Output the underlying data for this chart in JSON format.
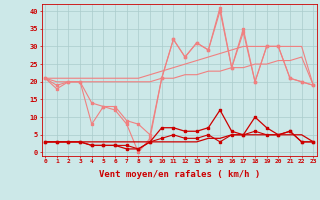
{
  "x": [
    0,
    1,
    2,
    3,
    4,
    5,
    6,
    7,
    8,
    9,
    10,
    11,
    12,
    13,
    14,
    15,
    16,
    17,
    18,
    19,
    20,
    21,
    22,
    23
  ],
  "rafales_line1": [
    21,
    19,
    20,
    20,
    8,
    13,
    12,
    8,
    0,
    4,
    21,
    32,
    27,
    31,
    29,
    40,
    24,
    34,
    20,
    30,
    30,
    21,
    20,
    19
  ],
  "rafales_line2": [
    21,
    18,
    20,
    20,
    14,
    13,
    13,
    9,
    8,
    5,
    21,
    32,
    27,
    31,
    29,
    41,
    24,
    35,
    20,
    30,
    30,
    21,
    20,
    19
  ],
  "trend_upper": [
    21,
    21,
    21,
    21,
    21,
    21,
    21,
    21,
    21,
    22,
    23,
    24,
    25,
    26,
    27,
    28,
    29,
    30,
    30,
    30,
    30,
    30,
    30,
    19
  ],
  "trend_lower": [
    21,
    20,
    20,
    20,
    20,
    20,
    20,
    20,
    20,
    20,
    21,
    21,
    22,
    22,
    23,
    23,
    24,
    24,
    25,
    25,
    26,
    26,
    27,
    19
  ],
  "moyen_line1": [
    3,
    3,
    3,
    3,
    2,
    2,
    2,
    1,
    1,
    3,
    7,
    7,
    6,
    6,
    7,
    12,
    6,
    5,
    10,
    7,
    5,
    6,
    3,
    3
  ],
  "moyen_trend": [
    3,
    3,
    3,
    3,
    3,
    3,
    3,
    3,
    3,
    3,
    3,
    3,
    3,
    3,
    4,
    4,
    5,
    5,
    5,
    5,
    5,
    5,
    5,
    3
  ],
  "moyen_line2": [
    3,
    3,
    3,
    3,
    2,
    2,
    2,
    2,
    1,
    3,
    4,
    5,
    4,
    4,
    5,
    3,
    5,
    5,
    6,
    5,
    5,
    6,
    3,
    3
  ],
  "background_color": "#cce8e8",
  "grid_color": "#aacccc",
  "line_color_light": "#f08080",
  "line_color_dark": "#cc0000",
  "xlabel": "Vent moyen/en rafales ( km/h )",
  "ylim": [
    -1,
    42
  ],
  "xlim": [
    -0.3,
    23.3
  ]
}
